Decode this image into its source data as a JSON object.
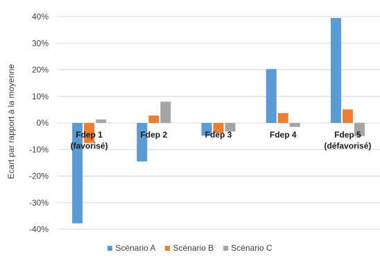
{
  "chart_data": {
    "type": "bar",
    "title": "",
    "ylabel": "Ecart par rapport à la moyenne",
    "xlabel": "",
    "ylim": [
      -40,
      40
    ],
    "yticks": [
      40,
      30,
      20,
      10,
      0,
      -10,
      -20,
      -30,
      -40
    ],
    "ytick_labels": [
      "40%",
      "30%",
      "20%",
      "10%",
      "0%",
      "-10%",
      "-20%",
      "-30%",
      "-40%"
    ],
    "grid": true,
    "legend_position": "bottom",
    "categories": [
      [
        "Fdep 1",
        "(favorisé)"
      ],
      [
        "Fdep 2"
      ],
      [
        "Fdep 3"
      ],
      [
        "Fdep 4"
      ],
      [
        "Fdep 5",
        "(défavorisé)"
      ]
    ],
    "series": [
      {
        "name": "Scénario A",
        "color": "#5b9bd5",
        "values": [
          -37.8,
          -14.5,
          -4.8,
          20.3,
          39.5
        ]
      },
      {
        "name": "Scénario B",
        "color": "#ed7d31",
        "values": [
          -7.5,
          2.8,
          -3.8,
          3.7,
          5.1
        ]
      },
      {
        "name": "Scénario C",
        "color": "#a5a5a5",
        "values": [
          1.3,
          8.0,
          -3.2,
          -1.5,
          -5.0
        ]
      }
    ]
  }
}
